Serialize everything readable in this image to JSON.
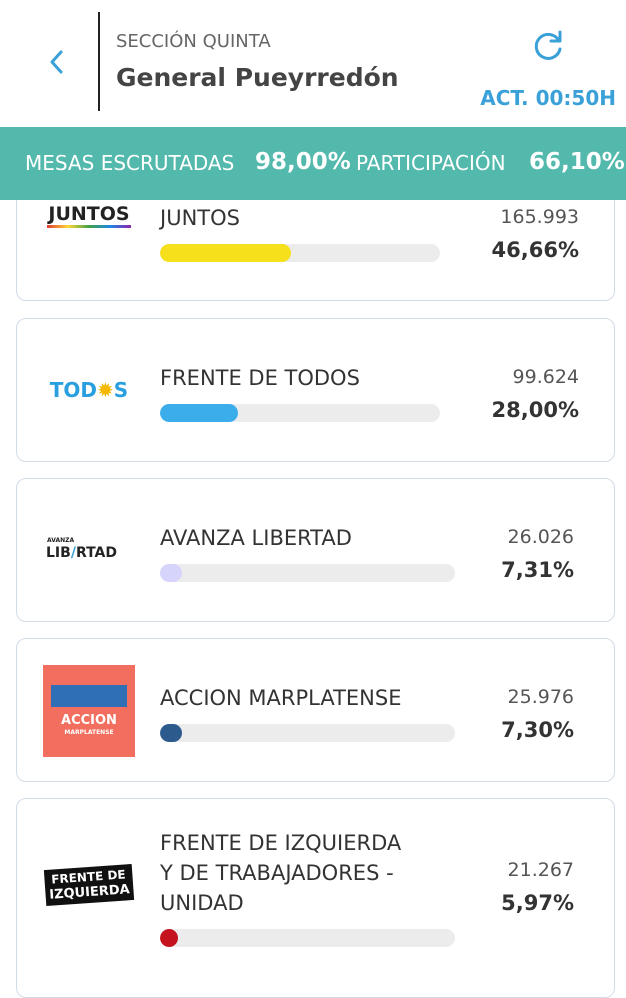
{
  "header": {
    "section": "SECCIÓN QUINTA",
    "district": "General Pueyrredón",
    "updated": "ACT. 00:50H"
  },
  "summary": {
    "tables_label": "MESAS ESCRUTADAS",
    "tables_value": "98,00%",
    "participation_label": "PARTICIPACIÓN",
    "participation_value": "66,10%"
  },
  "parties": [
    {
      "name_lines": [
        "JUNTOS"
      ],
      "logo": [
        "JUNTOS"
      ],
      "votes": "165.993",
      "share": 46.66,
      "share_label": "46,66%",
      "color": "#f6e01c"
    },
    {
      "name_lines": [
        "FRENTE DE TODOS"
      ],
      "logo": [
        "TOD",
        "S"
      ],
      "votes": "99.624",
      "share": 28.0,
      "share_label": "28,00%",
      "color": "#3badea"
    },
    {
      "name_lines": [
        "AVANZA LIBERTAD"
      ],
      "logo": [
        "AVANZA",
        "LIB",
        "RTAD"
      ],
      "votes": "26.026",
      "share": 7.31,
      "share_label": "7,31%",
      "color": "#d6d4fa"
    },
    {
      "name_lines": [
        "ACCION MARPLATENSE"
      ],
      "logo": [
        "ACCION",
        "MARPLATENSE"
      ],
      "votes": "25.976",
      "share": 7.3,
      "share_label": "7,30%",
      "color": "#2c5a8c"
    },
    {
      "name_lines": [
        "FRENTE DE IZQUIERDA",
        "Y DE TRABAJADORES -",
        "UNIDAD"
      ],
      "logo": [
        "FRENTE DE",
        "IZQUIERDA"
      ],
      "votes": "21.267",
      "share": 5.97,
      "share_label": "5,97%",
      "color": "#c4121f"
    }
  ]
}
